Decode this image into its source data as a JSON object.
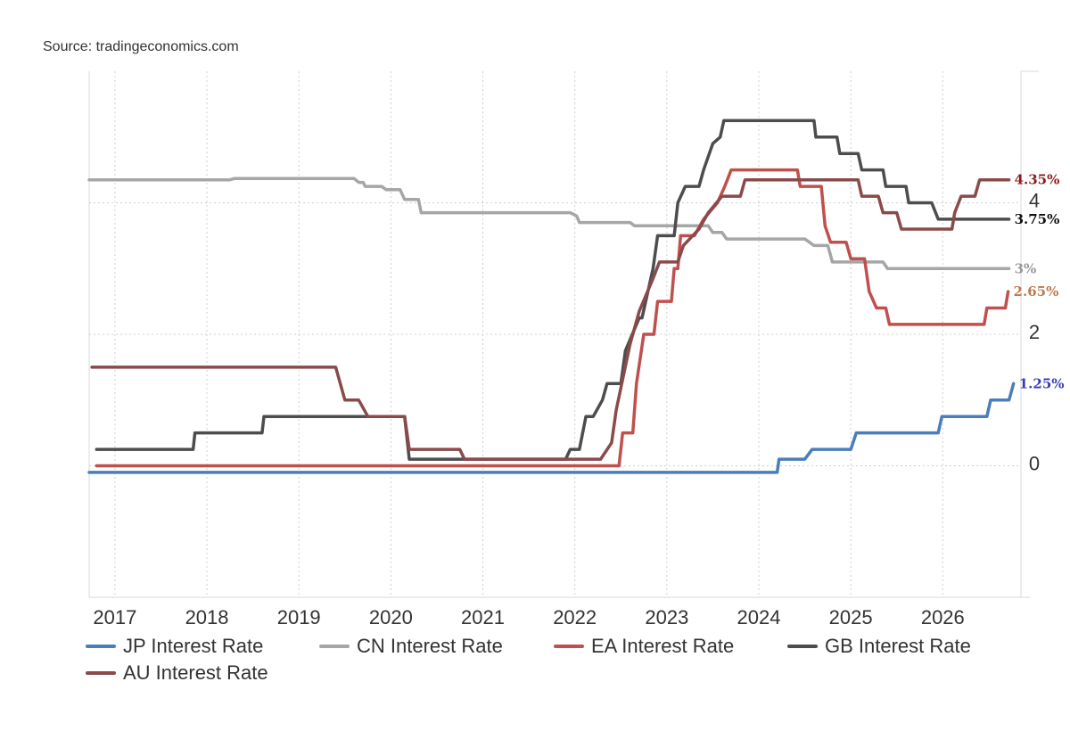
{
  "source_text": "Source: tradingeconomics.com",
  "chart_data": {
    "type": "line",
    "grid": true,
    "legend_position": "bottom",
    "xlim": [
      2016.72,
      2026.85
    ],
    "ylim": [
      -2.0,
      6.0
    ],
    "x_ticks": [
      {
        "value": 2017,
        "label": "2017"
      },
      {
        "value": 2018,
        "label": "2018"
      },
      {
        "value": 2019,
        "label": "2019"
      },
      {
        "value": 2020,
        "label": "2020"
      },
      {
        "value": 2021,
        "label": "2021"
      },
      {
        "value": 2022,
        "label": "2022"
      },
      {
        "value": 2023,
        "label": "2023"
      },
      {
        "value": 2024,
        "label": "2024"
      },
      {
        "value": 2025,
        "label": "2025"
      },
      {
        "value": 2026,
        "label": "2026"
      }
    ],
    "y_ticks": [
      {
        "value": 0,
        "label": "0"
      },
      {
        "value": 2,
        "label": "2"
      },
      {
        "value": 4,
        "label": "4"
      }
    ],
    "series": [
      {
        "name": "JP Interest Rate",
        "color": "#4a7ebb",
        "end_label": "1.25%",
        "end_label_color": "#3b3bb3",
        "points": [
          [
            2016.72,
            -0.1
          ],
          [
            2024.2,
            -0.1
          ],
          [
            2024.22,
            0.1
          ],
          [
            2024.5,
            0.1
          ],
          [
            2024.58,
            0.25
          ],
          [
            2025.0,
            0.25
          ],
          [
            2025.06,
            0.5
          ],
          [
            2025.95,
            0.5
          ],
          [
            2025.99,
            0.75
          ],
          [
            2026.48,
            0.75
          ],
          [
            2026.52,
            1.0
          ],
          [
            2026.72,
            1.0
          ],
          [
            2026.77,
            1.25
          ]
        ]
      },
      {
        "name": "CN Interest Rate",
        "color": "#a6a6a6",
        "end_label": "3%",
        "end_label_color": "#999999",
        "points": [
          [
            2016.72,
            4.35
          ],
          [
            2018.25,
            4.35
          ],
          [
            2018.3,
            4.37
          ],
          [
            2019.6,
            4.37
          ],
          [
            2019.65,
            4.31
          ],
          [
            2019.7,
            4.31
          ],
          [
            2019.72,
            4.25
          ],
          [
            2019.9,
            4.25
          ],
          [
            2019.95,
            4.2
          ],
          [
            2020.1,
            4.2
          ],
          [
            2020.15,
            4.05
          ],
          [
            2020.3,
            4.05
          ],
          [
            2020.33,
            3.85
          ],
          [
            2021.95,
            3.85
          ],
          [
            2022.02,
            3.8
          ],
          [
            2022.05,
            3.7
          ],
          [
            2022.6,
            3.7
          ],
          [
            2022.65,
            3.65
          ],
          [
            2023.45,
            3.65
          ],
          [
            2023.5,
            3.55
          ],
          [
            2023.6,
            3.55
          ],
          [
            2023.65,
            3.45
          ],
          [
            2024.5,
            3.45
          ],
          [
            2024.6,
            3.35
          ],
          [
            2024.75,
            3.35
          ],
          [
            2024.8,
            3.1
          ],
          [
            2025.35,
            3.1
          ],
          [
            2025.4,
            3.0
          ],
          [
            2026.72,
            3.0
          ]
        ]
      },
      {
        "name": "EA Interest Rate",
        "color": "#c0504d",
        "end_label": "2.65%",
        "end_label_color": "#c07850",
        "points": [
          [
            2016.8,
            0.0
          ],
          [
            2022.48,
            0.0
          ],
          [
            2022.52,
            0.5
          ],
          [
            2022.63,
            0.5
          ],
          [
            2022.67,
            1.25
          ],
          [
            2022.75,
            2.0
          ],
          [
            2022.86,
            2.0
          ],
          [
            2022.9,
            2.5
          ],
          [
            2023.05,
            2.5
          ],
          [
            2023.08,
            3.0
          ],
          [
            2023.12,
            3.0
          ],
          [
            2023.15,
            3.5
          ],
          [
            2023.3,
            3.5
          ],
          [
            2023.4,
            3.75
          ],
          [
            2023.55,
            4.0
          ],
          [
            2023.63,
            4.25
          ],
          [
            2023.7,
            4.5
          ],
          [
            2024.42,
            4.5
          ],
          [
            2024.45,
            4.25
          ],
          [
            2024.68,
            4.25
          ],
          [
            2024.72,
            3.65
          ],
          [
            2024.78,
            3.4
          ],
          [
            2024.95,
            3.4
          ],
          [
            2025.0,
            3.15
          ],
          [
            2025.15,
            3.15
          ],
          [
            2025.2,
            2.65
          ],
          [
            2025.28,
            2.4
          ],
          [
            2025.38,
            2.4
          ],
          [
            2025.42,
            2.15
          ],
          [
            2026.45,
            2.15
          ],
          [
            2026.48,
            2.4
          ],
          [
            2026.68,
            2.4
          ],
          [
            2026.71,
            2.65
          ]
        ]
      },
      {
        "name": "GB Interest Rate",
        "color": "#4d4d4d",
        "end_label": "3.75%",
        "end_label_color": "#111111",
        "points": [
          [
            2016.8,
            0.25
          ],
          [
            2017.85,
            0.25
          ],
          [
            2017.87,
            0.5
          ],
          [
            2018.6,
            0.5
          ],
          [
            2018.62,
            0.75
          ],
          [
            2020.15,
            0.75
          ],
          [
            2020.2,
            0.1
          ],
          [
            2021.9,
            0.1
          ],
          [
            2021.95,
            0.25
          ],
          [
            2022.05,
            0.25
          ],
          [
            2022.12,
            0.75
          ],
          [
            2022.2,
            0.75
          ],
          [
            2022.3,
            1.0
          ],
          [
            2022.35,
            1.25
          ],
          [
            2022.5,
            1.25
          ],
          [
            2022.55,
            1.75
          ],
          [
            2022.7,
            2.25
          ],
          [
            2022.73,
            2.25
          ],
          [
            2022.85,
            3.0
          ],
          [
            2022.9,
            3.5
          ],
          [
            2023.08,
            3.5
          ],
          [
            2023.12,
            4.0
          ],
          [
            2023.2,
            4.25
          ],
          [
            2023.35,
            4.25
          ],
          [
            2023.4,
            4.5
          ],
          [
            2023.5,
            4.9
          ],
          [
            2023.58,
            5.0
          ],
          [
            2023.62,
            5.25
          ],
          [
            2024.6,
            5.25
          ],
          [
            2024.62,
            5.0
          ],
          [
            2024.85,
            5.0
          ],
          [
            2024.88,
            4.75
          ],
          [
            2025.08,
            4.75
          ],
          [
            2025.12,
            4.5
          ],
          [
            2025.35,
            4.5
          ],
          [
            2025.38,
            4.25
          ],
          [
            2025.6,
            4.25
          ],
          [
            2025.63,
            4.0
          ],
          [
            2025.88,
            4.0
          ],
          [
            2025.95,
            3.75
          ],
          [
            2026.72,
            3.75
          ]
        ]
      },
      {
        "name": "AU Interest Rate",
        "color": "#8b4a4a",
        "end_label": "4.35%",
        "end_label_color": "#8b1a1a",
        "points": [
          [
            2016.75,
            1.5
          ],
          [
            2019.4,
            1.5
          ],
          [
            2019.5,
            1.0
          ],
          [
            2019.65,
            1.0
          ],
          [
            2019.75,
            0.75
          ],
          [
            2020.15,
            0.75
          ],
          [
            2020.2,
            0.25
          ],
          [
            2020.75,
            0.25
          ],
          [
            2020.8,
            0.1
          ],
          [
            2022.28,
            0.1
          ],
          [
            2022.4,
            0.35
          ],
          [
            2022.45,
            0.85
          ],
          [
            2022.6,
            1.85
          ],
          [
            2022.7,
            2.35
          ],
          [
            2022.85,
            2.85
          ],
          [
            2022.92,
            3.1
          ],
          [
            2023.12,
            3.1
          ],
          [
            2023.18,
            3.35
          ],
          [
            2023.35,
            3.6
          ],
          [
            2023.45,
            3.85
          ],
          [
            2023.6,
            4.1
          ],
          [
            2023.8,
            4.1
          ],
          [
            2023.85,
            4.35
          ],
          [
            2025.08,
            4.35
          ],
          [
            2025.12,
            4.1
          ],
          [
            2025.3,
            4.1
          ],
          [
            2025.35,
            3.85
          ],
          [
            2025.5,
            3.85
          ],
          [
            2025.55,
            3.6
          ],
          [
            2026.1,
            3.6
          ],
          [
            2026.13,
            3.85
          ],
          [
            2026.2,
            4.1
          ],
          [
            2026.35,
            4.1
          ],
          [
            2026.4,
            4.35
          ],
          [
            2026.72,
            4.35
          ]
        ]
      }
    ]
  }
}
